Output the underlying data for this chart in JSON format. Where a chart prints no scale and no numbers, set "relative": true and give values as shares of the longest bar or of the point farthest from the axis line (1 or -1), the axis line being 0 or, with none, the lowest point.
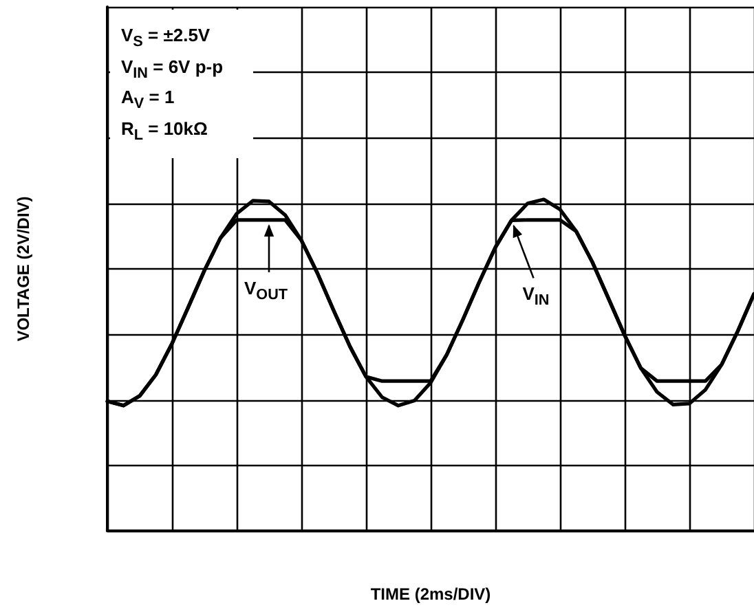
{
  "chart_data": {
    "type": "line",
    "relative": true,
    "xlabel": "TIME (2ms/DIV)",
    "ylabel": "VOLTAGE (2V/DIV)",
    "annotations": [
      "V$_{S}$ = ±2.5V",
      "V$_{IN}$ = 6V p-p",
      "A$_{V}$ = 1",
      "R$_{L}$ = 10kΩ"
    ],
    "categories": [
      null,
      null,
      null,
      null,
      null,
      null,
      null,
      null,
      null,
      null,
      null,
      null,
      null,
      null,
      null,
      null,
      null,
      null,
      null,
      null,
      null,
      null,
      null,
      null,
      null,
      null,
      null,
      null,
      null,
      null,
      null,
      null,
      null,
      null,
      null,
      null,
      null,
      null,
      null,
      null,
      null
    ],
    "series": [
      {
        "name": "V$_{OUT}$",
        "color": "#000000",
        "values": [
          0.391,
          0.378,
          0.407,
          0.471,
          0.565,
          0.674,
          0.785,
          0.884,
          0.938,
          0.938,
          0.938,
          0.938,
          0.877,
          0.777,
          0.665,
          0.557,
          0.465,
          0.452,
          0.452,
          0.452,
          0.452,
          0.532,
          0.638,
          0.75,
          0.855,
          0.937,
          0.938,
          0.938,
          0.938,
          0.904,
          0.811,
          0.701,
          0.59,
          0.491,
          0.452,
          0.452,
          0.452,
          0.452,
          0.502,
          0.603,
          0.715
        ]
      },
      {
        "name": "V$_{IN}$",
        "color": "#000000",
        "values": [
          0.391,
          0.378,
          0.407,
          0.471,
          0.565,
          0.674,
          0.785,
          0.884,
          0.957,
          0.996,
          0.994,
          0.953,
          0.877,
          0.777,
          0.665,
          0.557,
          0.465,
          0.403,
          0.378,
          0.393,
          0.447,
          0.532,
          0.638,
          0.75,
          0.855,
          0.937,
          0.988,
          1,
          0.97,
          0.904,
          0.811,
          0.701,
          0.59,
          0.491,
          0.419,
          0.381,
          0.384,
          0.426,
          0.502,
          0.603,
          0.715
        ]
      }
    ],
    "grid": true,
    "marker": "none",
    "line_style": "solid"
  }
}
